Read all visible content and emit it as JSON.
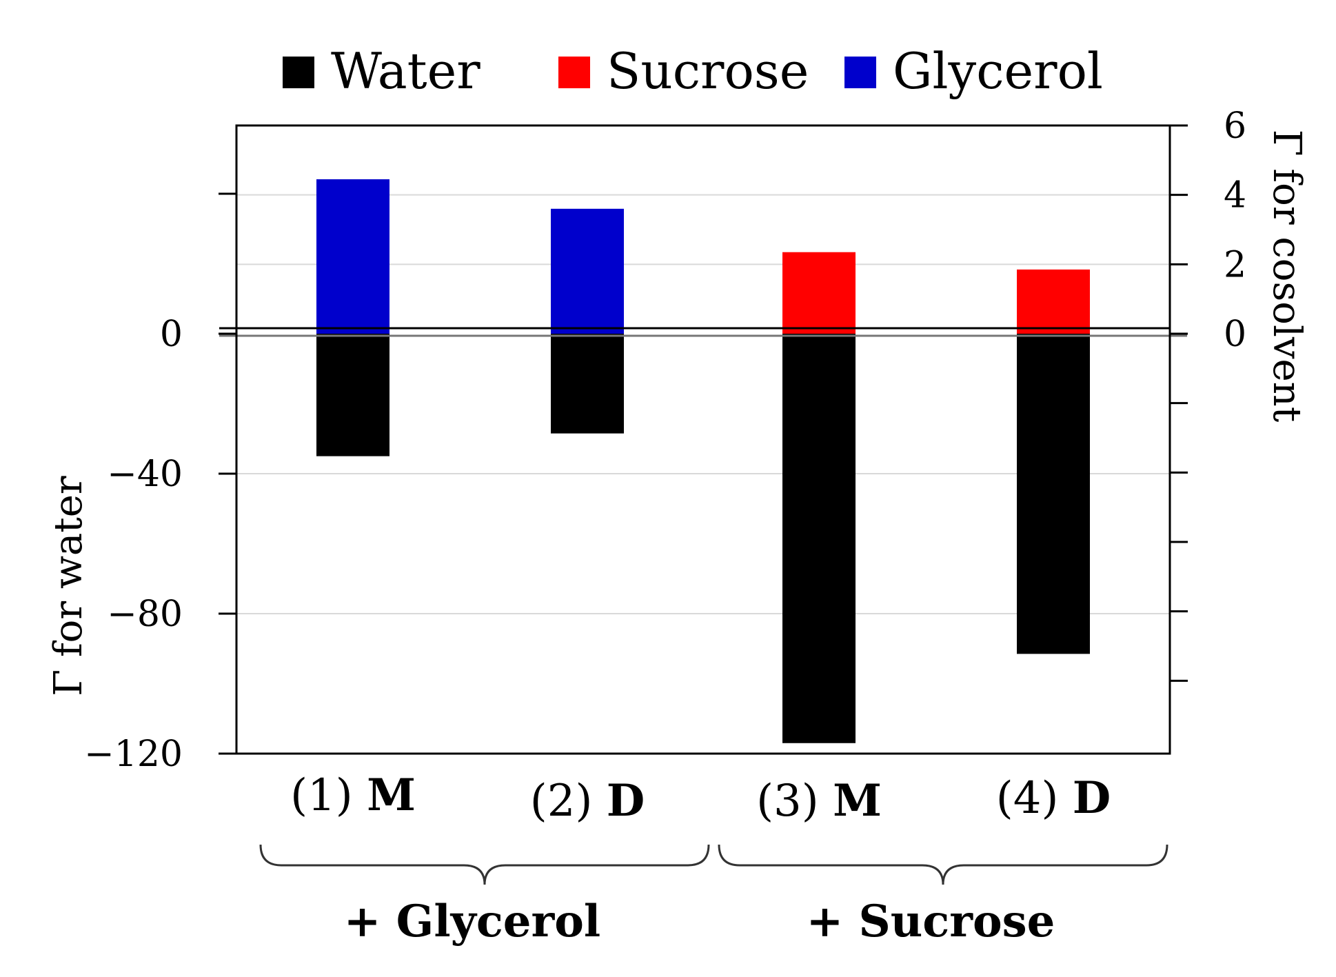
{
  "chart_data": {
    "type": "bar",
    "title": "",
    "legend": {
      "placement": "top",
      "items": [
        {
          "name": "Water",
          "color": "#000000"
        },
        {
          "name": "Sucrose",
          "color": "#ff0000"
        },
        {
          "name": "Glycerol",
          "color": "#0000cc"
        }
      ]
    },
    "categories": [
      {
        "prefix": "(1)",
        "label": "M",
        "group": "+ Glycerol"
      },
      {
        "prefix": "(2)",
        "label": "D",
        "group": "+ Glycerol"
      },
      {
        "prefix": "(3)",
        "label": "M",
        "group": "+ Sucrose"
      },
      {
        "prefix": "(4)",
        "label": "D",
        "group": "+ Sucrose"
      }
    ],
    "groups": [
      "+ Glycerol",
      "+ Sucrose"
    ],
    "series": [
      {
        "name": "Water",
        "axis": "left",
        "color": "#000000",
        "values": [
          -35,
          -28.5,
          -117,
          -91.5
        ]
      },
      {
        "name": "Cosolvent",
        "axis": "right",
        "colors": [
          "#0000cc",
          "#0000cc",
          "#ff0000",
          "#ff0000"
        ],
        "values": [
          4.45,
          3.6,
          2.35,
          1.85
        ]
      }
    ],
    "y_left": {
      "label": "Γ for water",
      "ylim": [
        -120,
        60
      ],
      "ticks": [
        -120,
        -80,
        -40,
        0
      ],
      "tick_labels": [
        "−120",
        "−80",
        "−40",
        "0"
      ],
      "unlabeled_ticks": [
        40
      ]
    },
    "y_right": {
      "label": "Γ for cosolvent",
      "ylim": [
        -12,
        6
      ],
      "ticks": [
        0,
        2,
        4,
        6
      ],
      "tick_labels": [
        "0",
        "2",
        "4",
        "6"
      ],
      "unlabeled_ticks": [
        -2,
        -4,
        -6,
        -8,
        -10
      ]
    },
    "grid": true
  }
}
